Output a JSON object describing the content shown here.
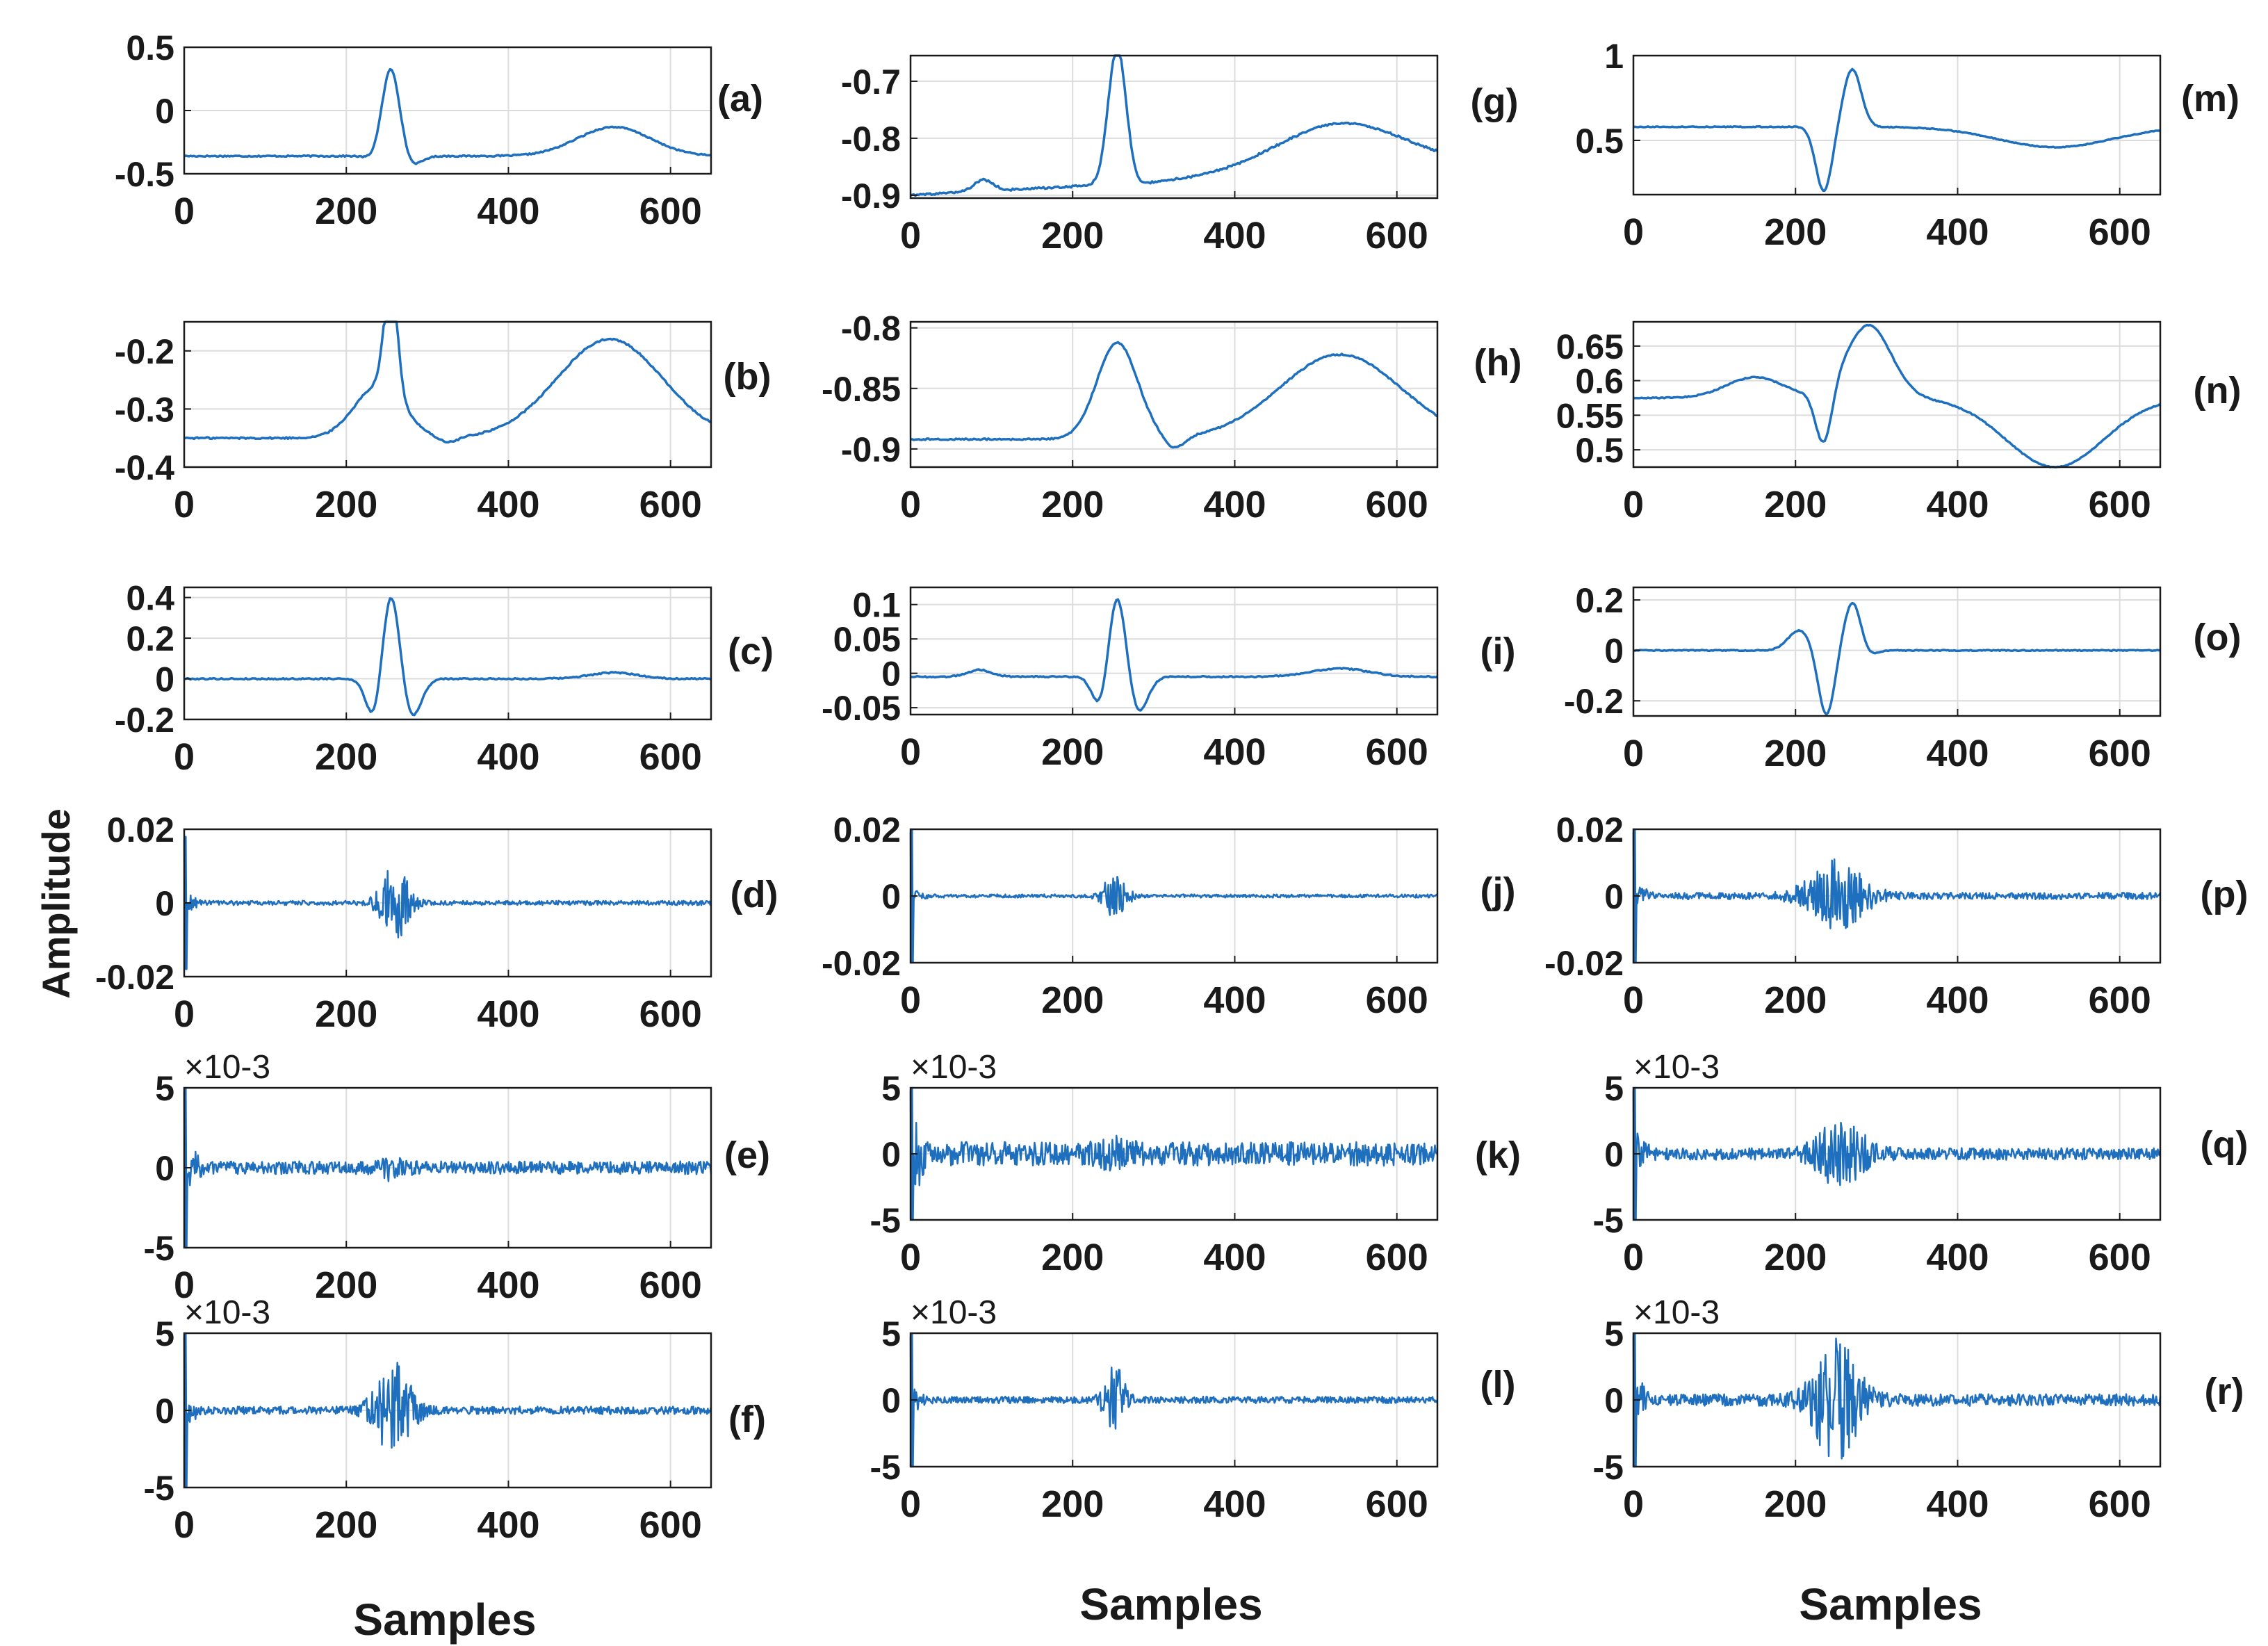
{
  "figure": {
    "ylabel": "Amplitude",
    "xlabel": "Samples",
    "line_color": "#1f6fbf",
    "grid_color": "#dcdcdc",
    "axis_color": "#1a1a1a"
  },
  "chart_data": [
    {
      "id": "a",
      "label": "(a)",
      "type": "line",
      "signal": "ecg",
      "xlim": [
        0,
        650
      ],
      "ylim": [
        -0.5,
        0.5
      ],
      "yticks": [
        "0.5",
        "0",
        "-0.5"
      ],
      "ytickv": [
        0.5,
        0,
        -0.5
      ],
      "xticks": [
        "0",
        "200",
        "400",
        "600"
      ],
      "exponent": "",
      "p": {
        "base": -0.36,
        "rAmp": 0.7,
        "qAmp": -0.03,
        "sAmp": -0.08,
        "tAmp": 0.23,
        "pAmp": 0,
        "tCenter": 530,
        "tWidth": 45
      }
    },
    {
      "id": "b",
      "label": "(b)",
      "type": "line",
      "signal": "ecg",
      "xlim": [
        0,
        650
      ],
      "ylim": [
        -0.4,
        -0.15
      ],
      "yticks": [
        "-0.2",
        "-0.3",
        "-0.4"
      ],
      "ytickv": [
        -0.2,
        -0.3,
        -0.4
      ],
      "xticks": [
        "0",
        "200",
        "400",
        "600"
      ],
      "exponent": "",
      "p": {
        "base": -0.35,
        "rAmp": 0.2,
        "qAmp": 0.0,
        "sAmp": -0.01,
        "tAmp": 0.17,
        "pAmp": 0.09,
        "pCenter": 240,
        "pWidth": 30,
        "tCenter": 525,
        "tWidth": 65,
        "rWidth": 8,
        "sCenter": 325
      }
    },
    {
      "id": "c",
      "label": "(c)",
      "type": "line",
      "signal": "ecg",
      "xlim": [
        0,
        650
      ],
      "ylim": [
        -0.2,
        0.45
      ],
      "yticks": [
        "0.4",
        "0.2",
        "0",
        "-0.2"
      ],
      "ytickv": [
        0.4,
        0.2,
        0,
        -0.2
      ],
      "xticks": [
        "0",
        "200",
        "400",
        "600"
      ],
      "exponent": "",
      "p": {
        "base": 0.0,
        "rAmp": 0.45,
        "qAmp": -0.22,
        "sAmp": -0.2,
        "tAmp": 0.03,
        "pAmp": 0,
        "tCenter": 530,
        "tWidth": 30
      }
    },
    {
      "id": "d",
      "label": "(d)",
      "type": "line",
      "signal": "noise",
      "xlim": [
        0,
        650
      ],
      "ylim": [
        -0.02,
        0.02
      ],
      "yticks": [
        "0.02",
        "0",
        "-0.02"
      ],
      "ytickv": [
        0.02,
        0,
        -0.02
      ],
      "xticks": [
        "0",
        "200",
        "400",
        "600"
      ],
      "exponent": "",
      "p": {
        "spike": 0.018,
        "floor": 0.0006,
        "burst": 0.01,
        "bCenter": 260,
        "bWidth": 14
      }
    },
    {
      "id": "e",
      "label": "(e)",
      "type": "line",
      "signal": "noise",
      "xlim": [
        0,
        650
      ],
      "ylim": [
        -5,
        5
      ],
      "yticks": [
        "5",
        "0",
        "-5"
      ],
      "ytickv": [
        5,
        0,
        -5
      ],
      "xticks": [
        "0",
        "200",
        "400",
        "600"
      ],
      "exponent": "×10^-3",
      "p": {
        "spike": 5,
        "floor": 0.4,
        "burst": 0.6,
        "bCenter": 258,
        "bWidth": 12
      }
    },
    {
      "id": "f",
      "label": "(f)",
      "type": "line",
      "signal": "noise",
      "xlim": [
        0,
        650
      ],
      "ylim": [
        -5,
        5
      ],
      "yticks": [
        "5",
        "0",
        "-5"
      ],
      "ytickv": [
        5,
        0,
        -5
      ],
      "xticks": [
        "0",
        "200",
        "400",
        "600"
      ],
      "exponent": "×10^-3",
      "p": {
        "spike": 5,
        "floor": 0.25,
        "burst": 3.2,
        "bCenter": 258,
        "bWidth": 18
      }
    },
    {
      "id": "g",
      "label": "(g)",
      "type": "line",
      "signal": "ecg",
      "xlim": [
        0,
        650
      ],
      "ylim": [
        -0.905,
        -0.655
      ],
      "yticks": [
        "-0.7",
        "-0.8",
        "-0.9"
      ],
      "ytickv": [
        -0.7,
        -0.8,
        -0.9
      ],
      "xticks": [
        "0",
        "200",
        "400",
        "600"
      ],
      "exponent": "",
      "p": {
        "base": -0.9,
        "rAmp": 0.24,
        "qAmp": 0,
        "sAmp": -0.005,
        "tAmp": 0.085,
        "pAmp": 0.02,
        "pCenter": 90,
        "pWidth": 12,
        "tCenter": 530,
        "tWidth": 80,
        "drift": 0.05
      }
    },
    {
      "id": "h",
      "label": "(h)",
      "type": "line",
      "signal": "ecg",
      "xlim": [
        0,
        650
      ],
      "ylim": [
        -0.915,
        -0.795
      ],
      "yticks": [
        "-0.8",
        "-0.85",
        "-0.9"
      ],
      "ytickv": [
        -0.8,
        -0.85,
        -0.9
      ],
      "xticks": [
        "0",
        "200",
        "400",
        "600"
      ],
      "exponent": "",
      "p": {
        "base": -0.892,
        "rAmp": 0.08,
        "qAmp": 0,
        "sAmp": -0.01,
        "tAmp": 0.07,
        "pAmp": 0.0,
        "tCenter": 530,
        "tWidth": 75,
        "rWidth": 25,
        "sCenter": 325
      }
    },
    {
      "id": "i",
      "label": "(i)",
      "type": "line",
      "signal": "ecg",
      "xlim": [
        0,
        650
      ],
      "ylim": [
        -0.06,
        0.125
      ],
      "yticks": [
        "0.1",
        "0.05",
        "0",
        "-0.05"
      ],
      "ytickv": [
        0.1,
        0.05,
        0,
        -0.05
      ],
      "xticks": [
        "0",
        "200",
        "400",
        "600"
      ],
      "exponent": "",
      "p": {
        "base": -0.005,
        "rAmp": 0.125,
        "qAmp": -0.05,
        "sAmp": -0.055,
        "tAmp": 0.012,
        "pAmp": 0.01,
        "pCenter": 85,
        "pWidth": 15,
        "tCenter": 530,
        "tWidth": 35
      }
    },
    {
      "id": "j",
      "label": "(j)",
      "type": "line",
      "signal": "noise",
      "xlim": [
        0,
        650
      ],
      "ylim": [
        -0.02,
        0.02
      ],
      "yticks": [
        "0.02",
        "0",
        "-0.02"
      ],
      "ytickv": [
        0.02,
        0,
        -0.02
      ],
      "xticks": [
        "0",
        "200",
        "400",
        "600"
      ],
      "exponent": "",
      "p": {
        "spike": 0.02,
        "floor": 0.0005,
        "burst": 0.006,
        "bCenter": 252,
        "bWidth": 12
      }
    },
    {
      "id": "k",
      "label": "(k)",
      "type": "line",
      "signal": "noise",
      "xlim": [
        0,
        650
      ],
      "ylim": [
        -5,
        5
      ],
      "yticks": [
        "5",
        "0",
        "-5"
      ],
      "ytickv": [
        5,
        0,
        -5
      ],
      "xticks": [
        "0",
        "200",
        "400",
        "600"
      ],
      "exponent": "×10^-3",
      "p": {
        "spike": 5,
        "floor": 0.9,
        "burst": 0.5,
        "bCenter": 250,
        "bWidth": 15
      }
    },
    {
      "id": "l",
      "label": "(l)",
      "type": "line",
      "signal": "noise",
      "xlim": [
        0,
        650
      ],
      "ylim": [
        -5,
        5
      ],
      "yticks": [
        "5",
        "0",
        "-5"
      ],
      "ytickv": [
        5,
        0,
        -5
      ],
      "xticks": [
        "0",
        "200",
        "400",
        "600"
      ],
      "exponent": "×10^-3",
      "p": {
        "spike": 5,
        "floor": 0.25,
        "burst": 2.5,
        "bCenter": 252,
        "bWidth": 10
      }
    },
    {
      "id": "m",
      "label": "(m)",
      "type": "line",
      "signal": "ecg",
      "xlim": [
        0,
        650
      ],
      "ylim": [
        0.18,
        1.0
      ],
      "yticks": [
        "1",
        "0.5"
      ],
      "ytickv": [
        1,
        0.5
      ],
      "xticks": [
        "0",
        "200",
        "400",
        "600"
      ],
      "exponent": "",
      "p": {
        "base": 0.58,
        "rAmp": 0.34,
        "qAmp": -0.38,
        "sAmp": 0.0,
        "tAmp": -0.12,
        "pAmp": 0,
        "tCenter": 520,
        "tWidth": 70,
        "rCenter": 270,
        "qCenter": 235
      }
    },
    {
      "id": "n",
      "label": "(n)",
      "type": "line",
      "signal": "ecg",
      "xlim": [
        0,
        650
      ],
      "ylim": [
        0.475,
        0.685
      ],
      "yticks": [
        "0.65",
        "0.6",
        "0.55",
        "0.5"
      ],
      "ytickv": [
        0.65,
        0.6,
        0.55,
        0.5
      ],
      "xticks": [
        "0",
        "200",
        "400",
        "600"
      ],
      "exponent": "",
      "p": {
        "base": 0.575,
        "rAmp": 0.105,
        "qAmp": -0.08,
        "sAmp": 0.0,
        "tAmp": -0.1,
        "pAmp": 0.03,
        "pCenter": 150,
        "pWidth": 35,
        "tCenter": 520,
        "tWidth": 60,
        "rCenter": 290,
        "qCenter": 235,
        "rWidth": 28
      }
    },
    {
      "id": "o",
      "label": "(o)",
      "type": "line",
      "signal": "ecg",
      "xlim": [
        0,
        650
      ],
      "ylim": [
        -0.26,
        0.25
      ],
      "yticks": [
        "0.2",
        "0",
        "-0.2"
      ],
      "ytickv": [
        0.2,
        0,
        -0.2
      ],
      "xticks": [
        "0",
        "200",
        "400",
        "600"
      ],
      "exponent": "",
      "p": {
        "base": 0.0,
        "rAmp": 0.25,
        "qAmp": -0.26,
        "sAmp": -0.08,
        "tAmp": 0,
        "pAmp": 0.08,
        "pCenter": 205,
        "pWidth": 14,
        "tCenter": 500,
        "tWidth": 40,
        "rCenter": 272,
        "qCenter": 238
      }
    },
    {
      "id": "p",
      "label": "(p)",
      "type": "line",
      "signal": "noise",
      "xlim": [
        0,
        650
      ],
      "ylim": [
        -0.02,
        0.02
      ],
      "yticks": [
        "0.02",
        "0",
        "-0.02"
      ],
      "ytickv": [
        0.02,
        0,
        -0.02
      ],
      "xticks": [
        "0",
        "200",
        "400",
        "600"
      ],
      "exponent": "",
      "p": {
        "spike": 0.02,
        "floor": 0.001,
        "burst": 0.01,
        "bCenter": 250,
        "bWidth": 28
      }
    },
    {
      "id": "q",
      "label": "(q)",
      "type": "line",
      "signal": "noise",
      "xlim": [
        0,
        650
      ],
      "ylim": [
        -5,
        5
      ],
      "yticks": [
        "5",
        "0",
        "-5"
      ],
      "ytickv": [
        5,
        0,
        -5
      ],
      "xticks": [
        "0",
        "200",
        "400",
        "600"
      ],
      "exponent": "×10^-3",
      "p": {
        "spike": 5,
        "floor": 0.45,
        "burst": 2.2,
        "bCenter": 255,
        "bWidth": 25
      }
    },
    {
      "id": "r",
      "label": "(r)",
      "type": "line",
      "signal": "noise",
      "xlim": [
        0,
        650
      ],
      "ylim": [
        -5,
        5
      ],
      "yticks": [
        "5",
        "0",
        "-5"
      ],
      "ytickv": [
        5,
        0,
        -5
      ],
      "xticks": [
        "0",
        "200",
        "400",
        "600"
      ],
      "exponent": "×10^-3",
      "p": {
        "spike": 5,
        "floor": 0.45,
        "burst": 4.6,
        "bCenter": 250,
        "bWidth": 22
      }
    }
  ]
}
